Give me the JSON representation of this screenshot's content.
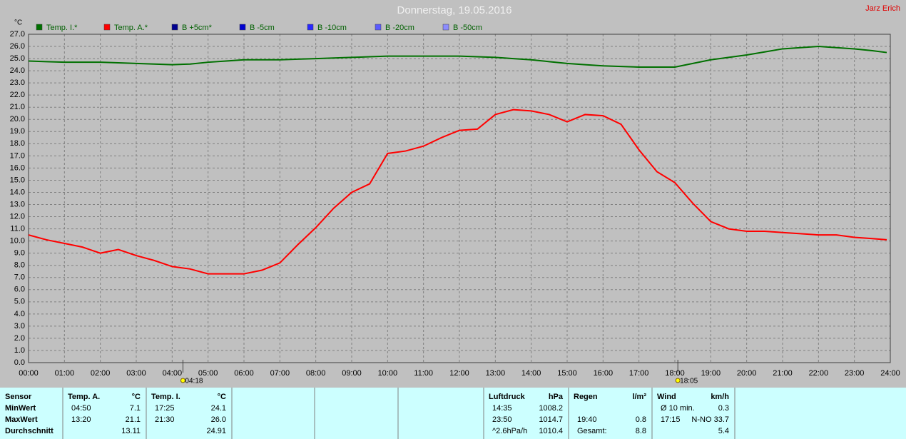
{
  "chart_data": {
    "type": "line",
    "title": "Donnerstag, 19.05.2016",
    "author": "Jarz Erich",
    "y_unit": "°C",
    "xlim": [
      0,
      24
    ],
    "ylim": [
      0,
      27
    ],
    "grid": true,
    "xticks": [
      {
        "value": 0,
        "label": "00:00"
      },
      {
        "value": 1,
        "label": "01:00"
      },
      {
        "value": 2,
        "label": "02:00"
      },
      {
        "value": 3,
        "label": "03:00"
      },
      {
        "value": 4,
        "label": "04:00"
      },
      {
        "value": 5,
        "label": "05:00"
      },
      {
        "value": 6,
        "label": "06:00"
      },
      {
        "value": 7,
        "label": "07:00"
      },
      {
        "value": 8,
        "label": "08:00"
      },
      {
        "value": 9,
        "label": "09:00"
      },
      {
        "value": 10,
        "label": "10:00"
      },
      {
        "value": 11,
        "label": "11:00"
      },
      {
        "value": 12,
        "label": "12:00"
      },
      {
        "value": 13,
        "label": "13:00"
      },
      {
        "value": 14,
        "label": "14:00"
      },
      {
        "value": 15,
        "label": "15:00"
      },
      {
        "value": 16,
        "label": "16:00"
      },
      {
        "value": 17,
        "label": "17:00"
      },
      {
        "value": 18,
        "label": "18:00"
      },
      {
        "value": 19,
        "label": "19:00"
      },
      {
        "value": 20,
        "label": "20:00"
      },
      {
        "value": 21,
        "label": "21:00"
      },
      {
        "value": 22,
        "label": "22:00"
      },
      {
        "value": 23,
        "label": "23:00"
      },
      {
        "value": 24,
        "label": "24:00"
      }
    ],
    "yticks": [
      {
        "value": 0,
        "label": "0.0"
      },
      {
        "value": 1,
        "label": "1.0"
      },
      {
        "value": 2,
        "label": "2.0"
      },
      {
        "value": 3,
        "label": "3.0"
      },
      {
        "value": 4,
        "label": "4.0"
      },
      {
        "value": 5,
        "label": "5.0"
      },
      {
        "value": 6,
        "label": "6.0"
      },
      {
        "value": 7,
        "label": "7.0"
      },
      {
        "value": 8,
        "label": "8.0"
      },
      {
        "value": 9,
        "label": "9.0"
      },
      {
        "value": 10,
        "label": "10.0"
      },
      {
        "value": 11,
        "label": "11.0"
      },
      {
        "value": 12,
        "label": "12.0"
      },
      {
        "value": 13,
        "label": "13.0"
      },
      {
        "value": 14,
        "label": "14.0"
      },
      {
        "value": 15,
        "label": "15.0"
      },
      {
        "value": 16,
        "label": "16.0"
      },
      {
        "value": 17,
        "label": "17.0"
      },
      {
        "value": 18,
        "label": "18.0"
      },
      {
        "value": 19,
        "label": "19.0"
      },
      {
        "value": 20,
        "label": "20.0"
      },
      {
        "value": 21,
        "label": "21.0"
      },
      {
        "value": 22,
        "label": "22.0"
      },
      {
        "value": 23,
        "label": "23.0"
      },
      {
        "value": 24,
        "label": "24.0"
      },
      {
        "value": 25,
        "label": "25.0"
      },
      {
        "value": 26,
        "label": "26.0"
      },
      {
        "value": 27,
        "label": "27.0"
      }
    ],
    "x": [
      0,
      0.5,
      1,
      1.5,
      2,
      2.5,
      3,
      3.5,
      4,
      4.5,
      5,
      5.5,
      6,
      6.5,
      7,
      7.5,
      8,
      8.5,
      9,
      9.5,
      10,
      10.5,
      11,
      11.5,
      12,
      12.5,
      13,
      13.5,
      14,
      14.5,
      15,
      15.5,
      16,
      16.5,
      17,
      17.5,
      18,
      18.5,
      19,
      19.5,
      20,
      20.5,
      21,
      21.5,
      22,
      22.5,
      23,
      23.5,
      23.9
    ],
    "series": [
      {
        "name": "Temp. I.*",
        "color": "#007000",
        "values": [
          24.8,
          24.75,
          24.7,
          24.7,
          24.7,
          24.65,
          24.6,
          24.55,
          24.5,
          24.55,
          24.7,
          24.8,
          24.9,
          24.9,
          24.9,
          24.95,
          25.0,
          25.05,
          25.1,
          25.15,
          25.2,
          25.2,
          25.2,
          25.2,
          25.2,
          25.15,
          25.1,
          25.0,
          24.9,
          24.75,
          24.6,
          24.5,
          24.4,
          24.35,
          24.3,
          24.3,
          24.3,
          24.6,
          24.9,
          25.1,
          25.3,
          25.55,
          25.8,
          25.9,
          26.0,
          25.9,
          25.8,
          25.65,
          25.5
        ]
      },
      {
        "name": "Temp. A.*",
        "color": "#ff0000",
        "values": [
          10.5,
          10.1,
          9.8,
          9.5,
          9.0,
          9.3,
          8.8,
          8.4,
          7.9,
          7.7,
          7.3,
          7.3,
          7.3,
          7.6,
          8.2,
          9.7,
          11.1,
          12.7,
          14.0,
          14.7,
          17.2,
          17.4,
          17.8,
          18.5,
          19.1,
          19.2,
          20.4,
          20.8,
          20.7,
          20.4,
          19.8,
          20.4,
          20.3,
          19.6,
          17.5,
          15.7,
          14.8,
          13.1,
          11.6,
          11.0,
          10.8,
          10.8,
          10.7,
          10.6,
          10.5,
          10.5,
          10.3,
          10.2,
          10.1
        ]
      },
      {
        "name": "B +5cm*",
        "color": "#000090"
      },
      {
        "name": "B -5cm",
        "color": "#0000d0"
      },
      {
        "name": "B -10cm",
        "color": "#2828ff"
      },
      {
        "name": "B -20cm",
        "color": "#5a5aff"
      },
      {
        "name": "B -50cm",
        "color": "#8c8cff"
      }
    ],
    "annotations": [
      {
        "x": 4.3,
        "label": "04:18"
      },
      {
        "x": 18.083,
        "label": "18:05"
      }
    ]
  },
  "stats": {
    "columns": [
      {
        "header": [
          "Sensor"
        ],
        "rows": [
          [
            "MinWert"
          ],
          [
            "MaxWert"
          ],
          [
            "Durchschnitt"
          ]
        ]
      },
      {
        "header": [
          "Temp. A.",
          "°C"
        ],
        "rows": [
          [
            "04:50",
            "7.1"
          ],
          [
            "13:20",
            "21.1"
          ],
          [
            null,
            "13.11"
          ]
        ]
      },
      {
        "header": [
          "Temp. I.",
          "°C"
        ],
        "rows": [
          [
            "17:25",
            "24.1"
          ],
          [
            "21:30",
            "26.0"
          ],
          [
            null,
            "24.91"
          ]
        ]
      },
      {
        "header": [
          "Luftdruck",
          "hPa"
        ],
        "rows": [
          [
            "14:35",
            "1008.2"
          ],
          [
            "23:50",
            "1014.7"
          ],
          [
            "^2.6hPa/h",
            "1010.4"
          ]
        ]
      },
      {
        "header": [
          "Regen",
          "l/m²"
        ],
        "rows": [
          [
            null,
            null
          ],
          [
            "19:40",
            "0.8"
          ],
          [
            "Gesamt:",
            "8.8"
          ]
        ]
      },
      {
        "header": [
          "Wind",
          "km/h"
        ],
        "rows": [
          [
            "Ø 10 min.",
            "0.3"
          ],
          [
            "17:15",
            "N-NO 33.7"
          ],
          [
            null,
            "5.4"
          ]
        ]
      }
    ]
  }
}
